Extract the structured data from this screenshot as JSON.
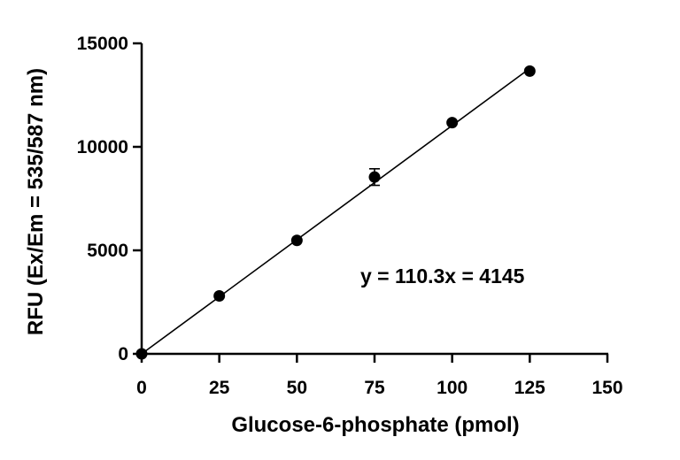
{
  "chart_data": {
    "type": "scatter",
    "title": "",
    "xlabel": "Glucose-6-phosphate (pmol)",
    "ylabel": "RFU (Ex/Em = 535/587 nm)",
    "xlim": [
      0,
      150
    ],
    "ylim": [
      0,
      15000
    ],
    "x_ticks": [
      0,
      25,
      50,
      75,
      100,
      125,
      150
    ],
    "y_ticks": [
      0,
      5000,
      10000,
      15000
    ],
    "grid": false,
    "legend": "none",
    "series": [
      {
        "x": [
          0,
          25,
          50,
          75,
          100,
          125
        ],
        "y": [
          0,
          2800,
          5480,
          8540,
          11170,
          13660
        ],
        "error": [
          0,
          0,
          0,
          400,
          0,
          0
        ]
      }
    ],
    "fit_line": {
      "slope": 110.3,
      "intercept": 0,
      "x_range": [
        0,
        125
      ]
    },
    "annotation": "y = 110.3x = 4145",
    "colors": {
      "marker": "#000000",
      "line": "#000000",
      "axis": "#000000"
    }
  }
}
